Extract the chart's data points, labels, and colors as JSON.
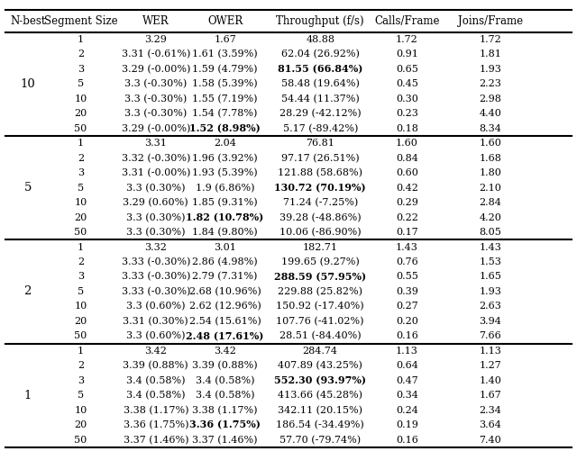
{
  "columns": [
    "N-best",
    "Segment Size",
    "WER",
    "OWER",
    "Throughput (f/s)",
    "Calls/Frame",
    "Joins/Frame"
  ],
  "sections": [
    {
      "nbest": "10",
      "rows": [
        [
          "1",
          "3.29",
          "1.67",
          "48.88",
          "1.72",
          "1.72"
        ],
        [
          "2",
          "3.31 (-0.61%)",
          "1.61 (3.59%)",
          "62.04 (26.92%)",
          "0.91",
          "1.81"
        ],
        [
          "3",
          "3.29 (-0.00%)",
          "1.59 (4.79%)",
          "81.55 (66.84%)",
          "0.65",
          "1.93"
        ],
        [
          "5",
          "3.3 (-0.30%)",
          "1.58 (5.39%)",
          "58.48 (19.64%)",
          "0.45",
          "2.23"
        ],
        [
          "10",
          "3.3 (-0.30%)",
          "1.55 (7.19%)",
          "54.44 (11.37%)",
          "0.30",
          "2.98"
        ],
        [
          "20",
          "3.3 (-0.30%)",
          "1.54 (7.78%)",
          "28.29 (-42.12%)",
          "0.23",
          "4.40"
        ],
        [
          "50",
          "3.29 (-0.00%)",
          "1.52 (8.98%)",
          "5.17 (-89.42%)",
          "0.18",
          "8.34"
        ]
      ],
      "bold_wer": [
        false,
        false,
        false,
        false,
        false,
        false,
        false
      ],
      "bold_ower": [
        false,
        false,
        false,
        false,
        false,
        false,
        true
      ],
      "bold_throughput": [
        false,
        false,
        true,
        false,
        false,
        false,
        false
      ]
    },
    {
      "nbest": "5",
      "rows": [
        [
          "1",
          "3.31",
          "2.04",
          "76.81",
          "1.60",
          "1.60"
        ],
        [
          "2",
          "3.32 (-0.30%)",
          "1.96 (3.92%)",
          "97.17 (26.51%)",
          "0.84",
          "1.68"
        ],
        [
          "3",
          "3.31 (-0.00%)",
          "1.93 (5.39%)",
          "121.88 (58.68%)",
          "0.60",
          "1.80"
        ],
        [
          "5",
          "3.3 (0.30%)",
          "1.9 (6.86%)",
          "130.72 (70.19%)",
          "0.42",
          "2.10"
        ],
        [
          "10",
          "3.29 (0.60%)",
          "1.85 (9.31%)",
          "71.24 (-7.25%)",
          "0.29",
          "2.84"
        ],
        [
          "20",
          "3.3 (0.30%)",
          "1.82 (10.78%)",
          "39.28 (-48.86%)",
          "0.22",
          "4.20"
        ],
        [
          "50",
          "3.3 (0.30%)",
          "1.84 (9.80%)",
          "10.06 (-86.90%)",
          "0.17",
          "8.05"
        ]
      ],
      "bold_wer": [
        false,
        false,
        false,
        false,
        false,
        false,
        false
      ],
      "bold_ower": [
        false,
        false,
        false,
        false,
        false,
        true,
        false
      ],
      "bold_throughput": [
        false,
        false,
        false,
        true,
        false,
        false,
        false
      ]
    },
    {
      "nbest": "2",
      "rows": [
        [
          "1",
          "3.32",
          "3.01",
          "182.71",
          "1.43",
          "1.43"
        ],
        [
          "2",
          "3.33 (-0.30%)",
          "2.86 (4.98%)",
          "199.65 (9.27%)",
          "0.76",
          "1.53"
        ],
        [
          "3",
          "3.33 (-0.30%)",
          "2.79 (7.31%)",
          "288.59 (57.95%)",
          "0.55",
          "1.65"
        ],
        [
          "5",
          "3.33 (-0.30%)",
          "2.68 (10.96%)",
          "229.88 (25.82%)",
          "0.39",
          "1.93"
        ],
        [
          "10",
          "3.3 (0.60%)",
          "2.62 (12.96%)",
          "150.92 (-17.40%)",
          "0.27",
          "2.63"
        ],
        [
          "20",
          "3.31 (0.30%)",
          "2.54 (15.61%)",
          "107.76 (-41.02%)",
          "0.20",
          "3.94"
        ],
        [
          "50",
          "3.3 (0.60%)",
          "2.48 (17.61%)",
          "28.51 (-84.40%)",
          "0.16",
          "7.66"
        ]
      ],
      "bold_wer": [
        false,
        false,
        false,
        false,
        false,
        false,
        false
      ],
      "bold_ower": [
        false,
        false,
        false,
        false,
        false,
        false,
        true
      ],
      "bold_throughput": [
        false,
        false,
        true,
        false,
        false,
        false,
        false
      ]
    },
    {
      "nbest": "1",
      "rows": [
        [
          "1",
          "3.42",
          "3.42",
          "284.74",
          "1.13",
          "1.13"
        ],
        [
          "2",
          "3.39 (0.88%)",
          "3.39 (0.88%)",
          "407.89 (43.25%)",
          "0.64",
          "1.27"
        ],
        [
          "3",
          "3.4 (0.58%)",
          "3.4 (0.58%)",
          "552.30 (93.97%)",
          "0.47",
          "1.40"
        ],
        [
          "5",
          "3.4 (0.58%)",
          "3.4 (0.58%)",
          "413.66 (45.28%)",
          "0.34",
          "1.67"
        ],
        [
          "10",
          "3.38 (1.17%)",
          "3.38 (1.17%)",
          "342.11 (20.15%)",
          "0.24",
          "2.34"
        ],
        [
          "20",
          "3.36 (1.75%)",
          "3.36 (1.75%)",
          "186.54 (-34.49%)",
          "0.19",
          "3.64"
        ],
        [
          "50",
          "3.37 (1.46%)",
          "3.37 (1.46%)",
          "57.70 (-79.74%)",
          "0.16",
          "7.40"
        ]
      ],
      "bold_wer": [
        false,
        false,
        false,
        false,
        false,
        false,
        false
      ],
      "bold_ower": [
        false,
        false,
        false,
        false,
        false,
        true,
        false
      ],
      "bold_throughput": [
        false,
        false,
        true,
        false,
        false,
        false,
        false
      ]
    }
  ],
  "header_fontsize": 8.5,
  "cell_fontsize": 8.0,
  "nbest_fontsize": 9.5,
  "fig_width": 6.4,
  "fig_height": 5.11,
  "background_color": "#ffffff",
  "text_color": "#000000"
}
